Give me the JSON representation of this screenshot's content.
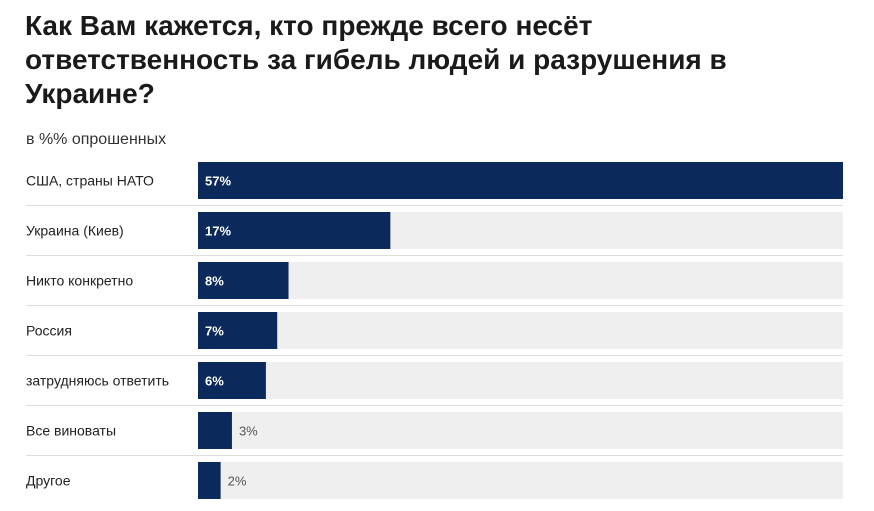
{
  "chart_data": {
    "type": "bar",
    "orientation": "horizontal",
    "title": "Как Вам кажется, кто прежде всего несёт ответственность за гибель людей и разрушения в Украине?",
    "subtitle": "в %% опрошенных",
    "categories": [
      "США, страны НАТО",
      "Украина (Киев)",
      "Никто конкретно",
      "Россия",
      "затрудняюсь ответить",
      "Все виноваты",
      "Другое"
    ],
    "values": [
      57,
      17,
      8,
      7,
      6,
      3,
      2
    ],
    "value_labels": [
      "57%",
      "17%",
      "8%",
      "7%",
      "6%",
      "3%",
      "2%"
    ],
    "xlim": [
      0,
      57
    ],
    "colors": {
      "bar": "#0b2a5b",
      "track": "#efefef",
      "label_inside": "#ffffff",
      "label_outside": "#555555",
      "separator": "#dddddd"
    }
  }
}
